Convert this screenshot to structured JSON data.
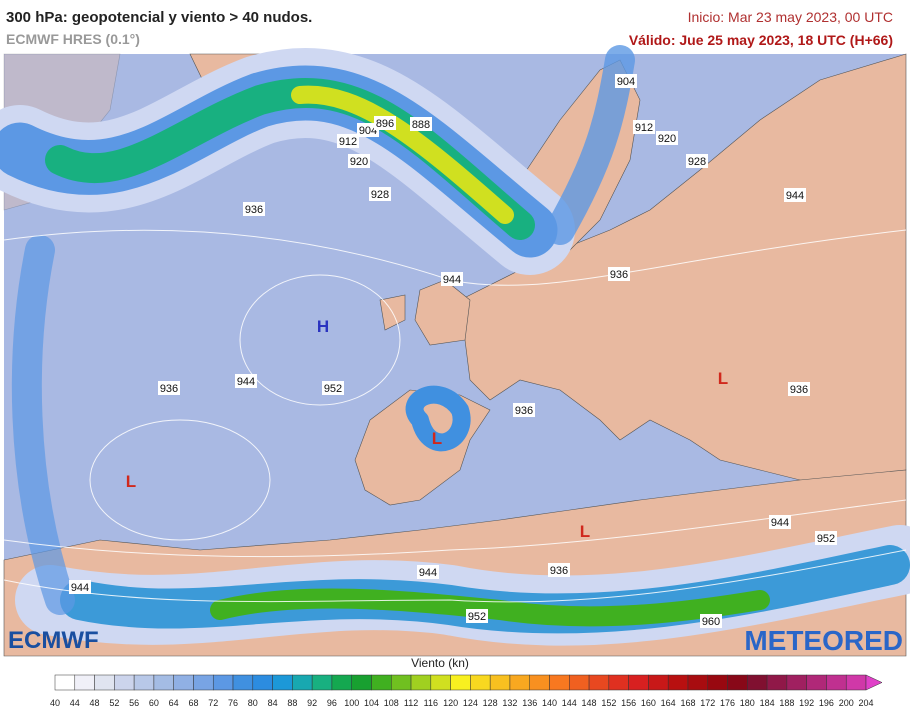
{
  "header": {
    "title": "300 hPa: geopotencial y viento > 40 nudos.",
    "model": "ECMWF HRES (0.1°)",
    "init": "Inicio: Mar 23 may 2023, 00 UTC",
    "valid": "Válido: Jue 25 may 2023, 18 UTC (H+66)"
  },
  "map": {
    "contour_labels": [
      "904",
      "912",
      "920",
      "928",
      "944",
      "904",
      "896",
      "888",
      "912",
      "920",
      "928",
      "936",
      "944",
      "936",
      "936",
      "944",
      "952",
      "936",
      "936",
      "944",
      "952",
      "944",
      "936",
      "944",
      "952",
      "960"
    ],
    "centers": [
      {
        "label": "H",
        "color": "#2a33c0"
      },
      {
        "label": "L",
        "color": "#d0281c"
      },
      {
        "label": "L",
        "color": "#d0281c"
      },
      {
        "label": "L",
        "color": "#d0281c"
      },
      {
        "label": "L",
        "color": "#d0281c"
      }
    ],
    "ocean_color": "#a9b9e3",
    "land_color": "#e8b9a0"
  },
  "logos": {
    "left": "ECMWF",
    "right": "METEORED"
  },
  "colorbar": {
    "title": "Viento (kn)",
    "ticks": [
      40,
      44,
      48,
      52,
      56,
      60,
      64,
      68,
      72,
      76,
      80,
      84,
      88,
      92,
      96,
      100,
      104,
      108,
      112,
      116,
      120,
      124,
      128,
      132,
      136,
      140,
      144,
      148,
      152,
      156,
      160,
      164,
      168,
      172,
      176,
      180,
      184,
      188,
      192,
      196,
      200,
      204
    ],
    "colors": [
      "#ffffff",
      "#f0f0f8",
      "#e0e4f0",
      "#ccd4ec",
      "#b8c8e8",
      "#a4bce4",
      "#90b0e4",
      "#78a4e4",
      "#5c98e4",
      "#4090e0",
      "#2c8ce0",
      "#1c98d8",
      "#18a8b0",
      "#18b080",
      "#14a850",
      "#18a030",
      "#40b020",
      "#70c020",
      "#a0d020",
      "#d0e020",
      "#f8f020",
      "#f8d820",
      "#f8c020",
      "#f8a820",
      "#f89020",
      "#f87820",
      "#f06020",
      "#e84820",
      "#e03020",
      "#d82020",
      "#c81818",
      "#b81010",
      "#a80c10",
      "#980810",
      "#880818",
      "#801030",
      "#901848",
      "#a02060",
      "#b02878",
      "#c03090",
      "#d038a8",
      "#e040c8"
    ]
  }
}
